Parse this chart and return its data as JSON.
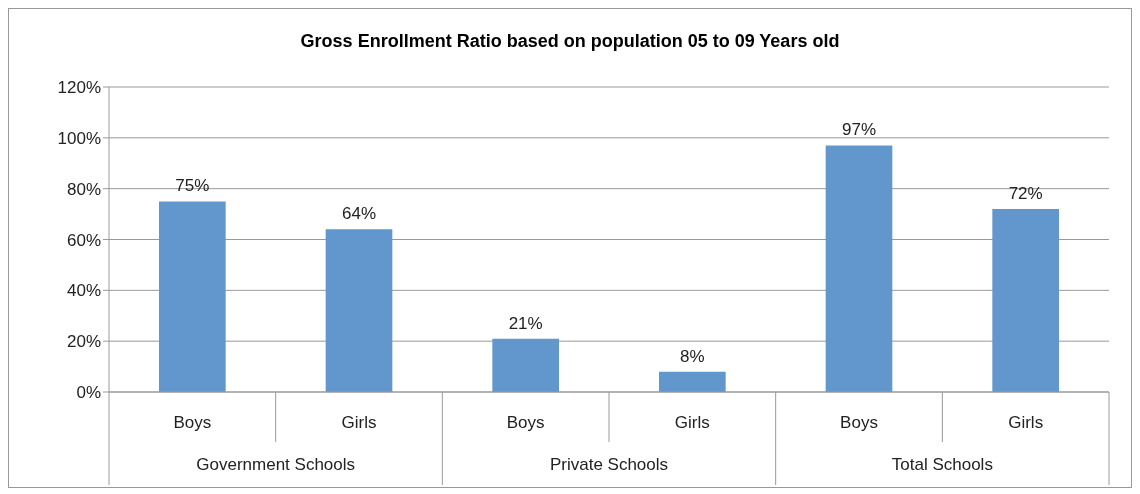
{
  "chart_data": {
    "type": "bar",
    "title": "Gross Enrollment Ratio based on population 05 to 09 Years old",
    "categories": [
      "Boys",
      "Girls",
      "Boys",
      "Girls",
      "Boys",
      "Girls"
    ],
    "values": [
      75,
      64,
      21,
      8,
      97,
      72
    ],
    "value_labels": [
      "75%",
      "64%",
      "21%",
      "8%",
      "97%",
      "72%"
    ],
    "color": "#6197cc",
    "ylim": [
      0,
      120
    ],
    "yticks": [
      {
        "value": 0,
        "label": "0%"
      },
      {
        "value": 20,
        "label": "20%"
      },
      {
        "value": 40,
        "label": "40%"
      },
      {
        "value": 60,
        "label": "60%"
      },
      {
        "value": 80,
        "label": "80%"
      },
      {
        "value": 100,
        "label": "100%"
      },
      {
        "value": 120,
        "label": "120%"
      }
    ],
    "grid": "y",
    "legend": false,
    "annotations": [
      "Government Schools",
      "Private Schools",
      "Total Schools"
    ]
  }
}
